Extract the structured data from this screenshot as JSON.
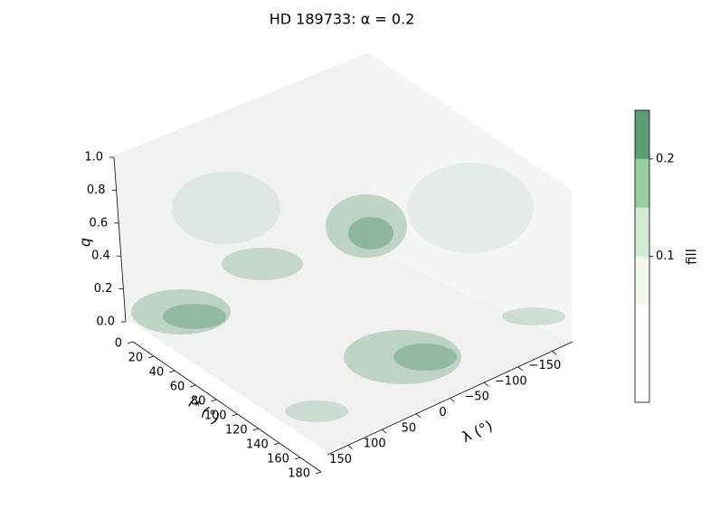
{
  "chart_data": {
    "type": "contour3d",
    "title": "HD 189733:  α = 0.2",
    "xlabel": "λ (°)",
    "ylabel": "i* (°)",
    "zlabel": "q",
    "xlim": [
      -180,
      180
    ],
    "xticks": [
      {
        "value": -150,
        "label": "−150"
      },
      {
        "value": -100,
        "label": "−100"
      },
      {
        "value": -50,
        "label": "−50"
      },
      0,
      50,
      100,
      150
    ],
    "ylim": [
      0,
      180
    ],
    "yticks": [
      0,
      20,
      40,
      60,
      80,
      100,
      120,
      140,
      160,
      180
    ],
    "zlim": [
      0,
      1
    ],
    "zticks": [
      {
        "value": 0,
        "label": "0.0"
      },
      0.2,
      0.4,
      0.6,
      0.8,
      {
        "value": 1,
        "label": "1.0"
      }
    ],
    "colorbar": {
      "label": "fill",
      "levels": [
        -0.05,
        0.05,
        0.1,
        0.15,
        0.2,
        0.25
      ],
      "colors": [
        "#ffffff",
        "#f1f8ee",
        "#d4ecd3",
        "#98cea0",
        "#5b9c73"
      ],
      "ticks": [
        0.1,
        0.2
      ]
    }
  }
}
